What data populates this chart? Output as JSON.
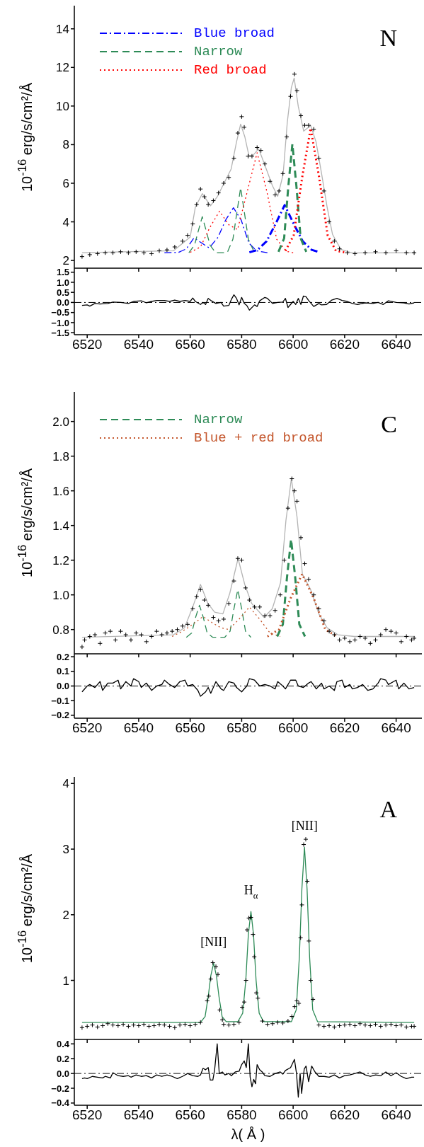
{
  "chart_data": [
    {
      "type": "line",
      "ylabel": "10$^{-16}$ erg/s/cm²/Å",
      "annotations": [
        "N"
      ],
      "xlim": [
        6515,
        6650
      ],
      "xticks": [
        6520,
        6540,
        6560,
        6580,
        6600,
        6620,
        6640
      ],
      "ylim": [
        1.6,
        15.2
      ],
      "yticks": [
        2,
        4,
        6,
        8,
        10,
        12,
        14
      ],
      "tick_labels": "y",
      "legend": "top left",
      "series": [
        {
          "type": "scatter",
          "marker": "cross",
          "color": "#000000",
          "x": [
            6518,
            6521,
            6524,
            6527,
            6530,
            6533,
            6536,
            6539,
            6542,
            6545,
            6548,
            6551,
            6554,
            6557,
            6559,
            6561,
            6562.5,
            6564,
            6565.5,
            6567,
            6569,
            6571,
            6573,
            6575,
            6577,
            6578.5,
            6580,
            6581,
            6582.5,
            6584,
            6586,
            6587.5,
            6589,
            6591,
            6593,
            6594.5,
            6596,
            6597.5,
            6599,
            6600.5,
            6601.5,
            6603,
            6604.5,
            6606,
            6608,
            6610,
            6612,
            6614,
            6616,
            6618,
            6621,
            6624,
            6628,
            6632,
            6636,
            6640,
            6644,
            6647
          ],
          "values": [
            2.2,
            2.3,
            2.35,
            2.4,
            2.4,
            2.45,
            2.4,
            2.45,
            2.4,
            2.35,
            2.5,
            2.55,
            2.7,
            3.0,
            3.3,
            3.9,
            4.9,
            5.7,
            5.3,
            4.9,
            5.1,
            5.5,
            6.0,
            6.3,
            7.3,
            8.6,
            9.45,
            8.9,
            7.4,
            7.4,
            7.85,
            7.7,
            7.0,
            6.1,
            5.4,
            5.6,
            6.5,
            8.4,
            10.5,
            11.65,
            10.8,
            9.5,
            9.0,
            9.0,
            8.8,
            7.3,
            5.6,
            4.0,
            3.0,
            2.6,
            2.4,
            2.35,
            2.4,
            2.45,
            2.4,
            2.5,
            2.4,
            2.4
          ]
        },
        {
          "color": "#b4b4b4",
          "x": [
            6518,
            6553.5,
            6560,
            6562,
            6564.7,
            6567.9,
            6570.6,
            6573.8,
            6575.9,
            6578,
            6579.6,
            6581.2,
            6582.8,
            6584.4,
            6586.6,
            6589.2,
            6591.9,
            6594,
            6596.1,
            6597.7,
            6599.3,
            6600.4,
            6602,
            6604.1,
            6606.8,
            6608.9,
            6611.1,
            6613.2,
            6615.3,
            6618.5,
            6622.8,
            6647.3
          ],
          "values": [
            2.4,
            2.5,
            3.21,
            4.76,
            5.46,
            4.83,
            5.32,
            6.17,
            6.73,
            8.14,
            9.06,
            8.42,
            7.44,
            7.44,
            7.79,
            6.87,
            5.89,
            5.32,
            6.45,
            9.13,
            10.96,
            11.45,
            9.97,
            8.7,
            8.99,
            8.14,
            6.45,
            4.76,
            3.35,
            2.58,
            2.39,
            2.4
          ]
        },
        {
          "color": "#0000ff",
          "line_style": "dashdot",
          "x": [
            6550,
            6555.5,
            6558.5,
            6561.5,
            6564.5,
            6567.4,
            6570.8,
            6573.8,
            6576.8,
            6579.8,
            6582.8,
            6585.8,
            6590
          ],
          "values": [
            2.4,
            2.42,
            2.6,
            3.17,
            2.9,
            2.65,
            3.2,
            4.1,
            4.73,
            4.1,
            2.9,
            2.5,
            2.4
          ]
        },
        {
          "color": "#2e8b57",
          "line_style": "dashed",
          "x": [
            6559.5,
            6561.7,
            6563.2,
            6564.7,
            6566.2,
            6567.7,
            6569.9,
            6574.4,
            6576.6,
            6578.1,
            6579.6,
            6581.1,
            6582.6,
            6584.8
          ],
          "values": [
            2.4,
            2.8,
            3.55,
            4.27,
            3.55,
            2.8,
            2.4,
            2.4,
            3.1,
            4.45,
            5.77,
            4.45,
            3.1,
            2.45
          ]
        },
        {
          "color": "#ff0000",
          "line_style": "dotted",
          "x": [
            6560,
            6564,
            6567.6,
            6571.4,
            6575,
            6578.4,
            6582.2,
            6586,
            6589.8,
            6593.6,
            6597.4,
            6600
          ],
          "values": [
            2.42,
            2.7,
            3.7,
            4.55,
            3.85,
            3.6,
            5.58,
            7.58,
            5.56,
            3.1,
            2.47,
            2.4
          ]
        },
        {
          "name": "Blue broad",
          "color": "#0000ff",
          "line_style": "dashdot",
          "x": [
            6583,
            6586.2,
            6589.7,
            6593.2,
            6596.7,
            6600.2,
            6603.7,
            6607.2,
            6610.4
          ],
          "values": [
            2.42,
            2.55,
            3.0,
            3.9,
            4.87,
            3.9,
            3.0,
            2.55,
            2.42
          ]
        },
        {
          "name": "Narrow",
          "color": "#2e8b57",
          "line_style": "dashed",
          "x": [
            6594.3,
            6596.5,
            6598.1,
            6599.7,
            6601.3,
            6602.9,
            6605.1
          ],
          "values": [
            2.45,
            3.15,
            5.8,
            8.03,
            5.8,
            3.15,
            2.45
          ]
        },
        {
          "name": "Red broad",
          "color": "#ff0000",
          "line_style": "dotted",
          "x": [
            6597,
            6600.2,
            6603.5,
            6606.8,
            6610.1,
            6613.4,
            6616.6,
            6620
          ],
          "values": [
            2.5,
            3.3,
            6.3,
            8.85,
            6.3,
            3.3,
            2.5,
            2.42
          ]
        }
      ]
    },
    {
      "type": "line",
      "xlim": [
        6515,
        6650
      ],
      "xticks": [
        6520,
        6540,
        6560,
        6580,
        6600,
        6620,
        6640
      ],
      "ylim": [
        -1.6,
        1.7
      ],
      "yticks": [
        {
          "value": -1.5,
          "label": "−1.5"
        },
        {
          "value": -1,
          "label": "−1.0"
        },
        {
          "value": -0.5,
          "label": "−0.5"
        },
        {
          "value": 0,
          "label": "0.0"
        },
        {
          "value": 0.5,
          "label": "0.5"
        },
        {
          "value": 1,
          "label": "1.0"
        },
        {
          "value": 1.5,
          "label": "1.5"
        }
      ],
      "ref_lines": [
        {
          "axis": "y",
          "value": 0,
          "color": "#000000",
          "line_style": "dashdot"
        }
      ],
      "series": [
        {
          "color": "#000000",
          "x": [
            6518,
            6520,
            6521,
            6523,
            6525,
            6528,
            6530,
            6533,
            6536,
            6538,
            6541,
            6543,
            6545,
            6547,
            6550,
            6552,
            6554,
            6556,
            6558,
            6560,
            6561,
            6562,
            6564,
            6565,
            6566,
            6567,
            6568,
            6570,
            6572,
            6573,
            6575,
            6576,
            6577,
            6578,
            6579,
            6580,
            6581,
            6582,
            6583,
            6585,
            6586,
            6587,
            6589,
            6590,
            6592,
            6594,
            6596,
            6597,
            6598,
            6599,
            6600,
            6601,
            6602,
            6603,
            6604,
            6605,
            6606,
            6608,
            6610,
            6611,
            6613,
            6615,
            6617,
            6619,
            6621,
            6623,
            6625,
            6628,
            6631,
            6633,
            6635,
            6637,
            6640,
            6643,
            6645,
            6647
          ],
          "values": [
            -0.15,
            -0.12,
            -0.18,
            -0.05,
            -0.08,
            -0.05,
            0.02,
            0.0,
            -0.05,
            0.05,
            0.08,
            -0.02,
            0.05,
            0.1,
            0.1,
            0.05,
            0.12,
            0.05,
            0.1,
            0.05,
            0.22,
            0.05,
            -0.1,
            0.0,
            -0.1,
            0.2,
            0.1,
            -0.05,
            0.0,
            -0.18,
            -0.15,
            0.15,
            0.38,
            0.2,
            -0.12,
            0.25,
            -0.05,
            -0.15,
            -0.38,
            -0.12,
            -0.2,
            0.08,
            0.25,
            0.2,
            -0.05,
            0.0,
            0.02,
            0.2,
            -0.25,
            -0.1,
            0.05,
            -0.1,
            0.2,
            -0.1,
            0.32,
            0.28,
            0.1,
            -0.2,
            -0.05,
            -0.12,
            -0.1,
            0.12,
            0.2,
            0.1,
            0.05,
            -0.05,
            -0.1,
            -0.02,
            -0.05,
            0.0,
            -0.1,
            0.08,
            0.0,
            -0.02,
            -0.08,
            -0.02
          ]
        }
      ]
    },
    {
      "type": "line",
      "ylabel": "10$^{-16}$ erg/s/cm²/Å",
      "annotations": [
        "C"
      ],
      "xlim": [
        6515,
        6650
      ],
      "xticks": [
        6520,
        6540,
        6560,
        6580,
        6600,
        6620,
        6640
      ],
      "ylim": [
        0.66,
        2.17
      ],
      "yticks": [
        {
          "value": 0.8,
          "label": "0.8"
        },
        {
          "value": 1,
          "label": "1.0"
        },
        {
          "value": 1.2,
          "label": "1.2"
        },
        {
          "value": 1.4,
          "label": "1.4"
        },
        {
          "value": 1.6,
          "label": "1.6"
        },
        {
          "value": 1.8,
          "label": "1.8"
        },
        {
          "value": 2,
          "label": "2.0"
        }
      ],
      "tick_labels": "y",
      "legend": "top left",
      "series": [
        {
          "type": "scatter",
          "marker": "cross",
          "color": "#000000",
          "x": [
            6518,
            6519,
            6521,
            6523,
            6525,
            6527,
            6529,
            6531,
            6533,
            6535,
            6537,
            6539,
            6541,
            6543,
            6545,
            6547,
            6549,
            6551,
            6553,
            6555,
            6557,
            6559,
            6561,
            6562.5,
            6564,
            6565.5,
            6567,
            6569,
            6571,
            6573,
            6575,
            6577,
            6578.5,
            6580,
            6581.5,
            6583,
            6585,
            6587,
            6589,
            6591,
            6593,
            6595,
            6596.5,
            6598,
            6599.5,
            6600.5,
            6601.5,
            6603,
            6604.5,
            6606,
            6608,
            6610,
            6612,
            6614,
            6616,
            6618,
            6620,
            6622,
            6624,
            6626,
            6628,
            6630,
            6632,
            6634,
            6636,
            6638,
            6640,
            6642,
            6644,
            6646,
            6647
          ],
          "values": [
            0.7,
            0.74,
            0.76,
            0.77,
            0.72,
            0.78,
            0.79,
            0.74,
            0.79,
            0.77,
            0.74,
            0.78,
            0.77,
            0.73,
            0.76,
            0.79,
            0.77,
            0.78,
            0.79,
            0.8,
            0.82,
            0.83,
            0.92,
            0.99,
            1.03,
            0.97,
            0.94,
            0.87,
            0.85,
            0.86,
            0.95,
            1.08,
            1.21,
            1.2,
            1.04,
            0.97,
            0.93,
            0.93,
            0.88,
            0.88,
            0.91,
            1.0,
            1.2,
            1.5,
            1.67,
            1.6,
            1.54,
            1.33,
            1.18,
            1.09,
            1.0,
            0.92,
            0.85,
            0.79,
            0.77,
            0.74,
            0.75,
            0.73,
            0.74,
            0.76,
            0.75,
            0.72,
            0.74,
            0.77,
            0.8,
            0.79,
            0.78,
            0.73,
            0.76,
            0.74,
            0.75
          ]
        },
        {
          "color": "#b4b4b4",
          "x": [
            6518,
            6553.5,
            6557.8,
            6561,
            6564,
            6566.9,
            6569.5,
            6572.7,
            6575.4,
            6578.6,
            6581.2,
            6583.9,
            6588.7,
            6591.9,
            6595.1,
            6597.2,
            6599.3,
            6601.5,
            6603.6,
            6606.8,
            6610,
            6613.2,
            6617.4,
            6623.8,
            6647.3
          ],
          "values": [
            0.755,
            0.77,
            0.81,
            0.93,
            1.06,
            0.95,
            0.9,
            0.89,
            1.01,
            1.21,
            1.06,
            0.95,
            0.87,
            0.92,
            1.07,
            1.43,
            1.67,
            1.45,
            1.12,
            1.03,
            0.89,
            0.81,
            0.77,
            0.76,
            0.76
          ]
        },
        {
          "color": "#2e8b57",
          "line_style": "dashed",
          "x": [
            6558.5,
            6560.6,
            6562.1,
            6563.6,
            6565.1,
            6566.6,
            6568.8,
            6573.4,
            6575.5,
            6577,
            6578.5,
            6580,
            6581.5,
            6583.6
          ],
          "values": [
            0.755,
            0.78,
            0.87,
            0.94,
            0.87,
            0.78,
            0.755,
            0.755,
            0.79,
            0.92,
            1.03,
            0.92,
            0.79,
            0.755
          ]
        },
        {
          "color": "#c4562c",
          "line_style": "dotted",
          "x": [
            6553,
            6557,
            6561,
            6565,
            6569,
            6572,
            6575,
            6579,
            6583,
            6587,
            6591,
            6595
          ],
          "values": [
            0.76,
            0.79,
            0.83,
            0.875,
            0.835,
            0.81,
            0.8,
            0.86,
            0.93,
            0.86,
            0.78,
            0.76
          ]
        },
        {
          "name": "Narrow",
          "color": "#2e8b57",
          "line_style": "dashed",
          "x": [
            6593.8,
            6596,
            6597.6,
            6599.2,
            6600.8,
            6602.4,
            6604.6
          ],
          "values": [
            0.76,
            0.83,
            1.1,
            1.32,
            1.1,
            0.83,
            0.76
          ]
        },
        {
          "name": "Blue + red broad",
          "color": "#c4562c",
          "line_style": "dotted",
          "x": [
            6590,
            6594.5,
            6599,
            6603.5,
            6608,
            6612.5,
            6617
          ],
          "values": [
            0.76,
            0.8,
            0.98,
            1.12,
            0.98,
            0.8,
            0.76
          ]
        }
      ]
    },
    {
      "type": "line",
      "xlim": [
        6515,
        6650
      ],
      "xticks": [
        6520,
        6540,
        6560,
        6580,
        6600,
        6620,
        6640
      ],
      "ylim": [
        -0.22,
        0.22
      ],
      "yticks": [
        {
          "value": -0.2,
          "label": "−0.2"
        },
        {
          "value": -0.1,
          "label": "−0.1"
        },
        {
          "value": 0,
          "label": "0.0"
        },
        {
          "value": 0.1,
          "label": "0.1"
        },
        {
          "value": 0.2,
          "label": "0.2"
        }
      ],
      "ref_lines": [
        {
          "axis": "y",
          "value": 0,
          "color": "#000000",
          "line_style": "dashdot"
        }
      ],
      "series": [
        {
          "color": "#000000",
          "x": [
            6518,
            6520,
            6521,
            6523,
            6525,
            6526,
            6528,
            6530,
            6532,
            6533,
            6535,
            6537,
            6538,
            6540,
            6541,
            6543,
            6545,
            6547,
            6549,
            6550,
            6552,
            6554,
            6556,
            6558,
            6559,
            6561,
            6563,
            6564,
            6566,
            6567,
            6568,
            6570,
            6572,
            6573,
            6575,
            6577,
            6578,
            6580,
            6582,
            6583,
            6585,
            6587,
            6589,
            6591,
            6593,
            6594,
            6596,
            6597,
            6599,
            6601,
            6602,
            6604,
            6606,
            6607,
            6609,
            6611,
            6612,
            6614,
            6616,
            6617,
            6619,
            6620,
            6622,
            6623,
            6625,
            6627,
            6629,
            6631,
            6633,
            6634,
            6636,
            6637,
            6639,
            6640,
            6641,
            6643,
            6645,
            6647
          ],
          "values": [
            -0.04,
            0.0,
            0.01,
            -0.01,
            0.03,
            -0.03,
            0.02,
            0.02,
            0.04,
            -0.02,
            0.03,
            0.0,
            0.05,
            0.03,
            -0.01,
            0.02,
            -0.03,
            0.0,
            0.01,
            0.04,
            0.01,
            -0.01,
            0.03,
            0.04,
            0.0,
            0.01,
            -0.03,
            -0.07,
            -0.04,
            -0.01,
            -0.05,
            0.03,
            -0.02,
            -0.03,
            0.03,
            0.02,
            -0.01,
            -0.04,
            0.0,
            0.05,
            0.04,
            0.0,
            0.01,
            0.0,
            -0.02,
            0.03,
            0.0,
            -0.02,
            0.04,
            0.04,
            0.0,
            -0.01,
            0.02,
            0.03,
            -0.02,
            0.02,
            -0.02,
            0.0,
            -0.03,
            0.03,
            0.04,
            -0.01,
            0.01,
            -0.02,
            -0.01,
            0.01,
            -0.03,
            -0.02,
            0.02,
            0.05,
            0.04,
            0.01,
            0.03,
            0.04,
            -0.02,
            0.02,
            -0.02,
            -0.01
          ]
        }
      ]
    },
    {
      "type": "line",
      "ylabel": "10$^{-16}$ erg/s/cm²/Å",
      "annotations": [
        "A",
        {
          "text": "[NII]",
          "x": 6569.1,
          "y": 1.26
        },
        {
          "text": "H$_{α}$",
          "x": 6583.6,
          "y": 2.05
        },
        {
          "text": "[NII]",
          "x": 6604.4,
          "y": 3.03
        }
      ],
      "xlim": [
        6515,
        6650
      ],
      "xticks": [
        6520,
        6540,
        6560,
        6580,
        6600,
        6620,
        6640
      ],
      "ylim": [
        0.1,
        4.1
      ],
      "yticks": [
        1,
        2,
        3,
        4
      ],
      "tick_labels": "y",
      "series": [
        {
          "type": "scatter",
          "marker": "cross",
          "color": "#000000",
          "x": [
            6518,
            6520,
            6522,
            6524,
            6526,
            6528,
            6530,
            6532,
            6534,
            6536,
            6538,
            6540,
            6542,
            6544,
            6546,
            6548,
            6550,
            6552,
            6554,
            6556,
            6558,
            6560,
            6562,
            6564,
            6566.6,
            6567.2,
            6568,
            6568.8,
            6570,
            6570.8,
            6571.5,
            6572.5,
            6573,
            6575,
            6577,
            6579,
            6580.2,
            6581,
            6581.7,
            6582.1,
            6582.8,
            6583.6,
            6584.4,
            6584.9,
            6585.7,
            6586.3,
            6588,
            6590,
            6592,
            6594,
            6596,
            6598,
            6599.5,
            6600.6,
            6601.4,
            6602.2,
            6602.9,
            6603.4,
            6604.1,
            6604.9,
            6605.5,
            6606.1,
            6606.8,
            6607.7,
            6610,
            6612,
            6614,
            6616,
            6618,
            6620,
            6622,
            6624,
            6626,
            6628,
            6630,
            6632,
            6634,
            6636,
            6638,
            6640,
            6642,
            6644,
            6646,
            6647
          ],
          "values": [
            0.28,
            0.3,
            0.32,
            0.29,
            0.31,
            0.34,
            0.32,
            0.31,
            0.33,
            0.3,
            0.32,
            0.31,
            0.33,
            0.3,
            0.31,
            0.33,
            0.32,
            0.3,
            0.28,
            0.32,
            0.33,
            0.31,
            0.33,
            0.36,
            0.69,
            0.76,
            1.02,
            1.27,
            1.21,
            1.09,
            0.55,
            0.4,
            0.33,
            0.32,
            0.33,
            0.36,
            0.59,
            0.67,
            1.0,
            1.77,
            1.95,
            1.96,
            1.7,
            1.36,
            0.81,
            0.73,
            0.38,
            0.33,
            0.34,
            0.36,
            0.35,
            0.38,
            0.45,
            0.6,
            0.69,
            0.65,
            1.65,
            2.15,
            3.07,
            3.15,
            2.51,
            1.6,
            1.0,
            0.71,
            0.32,
            0.3,
            0.31,
            0.29,
            0.31,
            0.32,
            0.33,
            0.31,
            0.34,
            0.32,
            0.31,
            0.33,
            0.3,
            0.32,
            0.33,
            0.31,
            0.32,
            0.29,
            0.3,
            0.3
          ]
        },
        {
          "color": "#2e8b57",
          "x": [
            6518,
            6564,
            6565.8,
            6567,
            6568,
            6569.1,
            6570.2,
            6571.2,
            6572.4,
            6574,
            6578.5,
            6580.4,
            6581.6,
            6582.6,
            6583.6,
            6584.6,
            6585.6,
            6586.8,
            6588.5,
            6599.3,
            6601.2,
            6602.4,
            6603.4,
            6604.4,
            6605.4,
            6606.4,
            6607.6,
            6609.5,
            6647
          ],
          "values": [
            0.36,
            0.36,
            0.45,
            0.75,
            1.07,
            1.26,
            1.07,
            0.75,
            0.45,
            0.37,
            0.37,
            0.5,
            1.0,
            1.7,
            2.05,
            1.7,
            1.0,
            0.5,
            0.37,
            0.37,
            0.55,
            1.35,
            2.4,
            3.03,
            2.4,
            1.35,
            0.55,
            0.37,
            0.36
          ]
        }
      ]
    },
    {
      "type": "line",
      "xlabel": "λ( Å )",
      "xlim": [
        6515,
        6650
      ],
      "xticks": [
        6520,
        6540,
        6560,
        6580,
        6600,
        6620,
        6640
      ],
      "ylim": [
        -0.43,
        0.46
      ],
      "yticks": [
        {
          "value": -0.4,
          "label": "−0.4"
        },
        {
          "value": -0.2,
          "label": "−0.2"
        },
        {
          "value": 0,
          "label": "0.0"
        },
        {
          "value": 0.2,
          "label": "0.2"
        },
        {
          "value": 0.4,
          "label": "0.4"
        }
      ],
      "ref_lines": [
        {
          "axis": "y",
          "value": 0,
          "color": "#000000",
          "line_style": "dashdot"
        }
      ],
      "series": [
        {
          "color": "#000000",
          "x": [
            6518,
            6519,
            6520,
            6522,
            6524,
            6526,
            6527,
            6529,
            6530,
            6532,
            6534,
            6536,
            6537,
            6539,
            6541,
            6543,
            6545,
            6547,
            6549,
            6551,
            6553,
            6555,
            6557,
            6559,
            6561,
            6563,
            6564,
            6565,
            6566,
            6567,
            6567.8,
            6568.8,
            6569.5,
            6570.5,
            6571.3,
            6572.5,
            6573.5,
            6575,
            6576,
            6577.5,
            6579,
            6580,
            6581,
            6581.8,
            6582.6,
            6583.3,
            6584,
            6584.7,
            6585.4,
            6586,
            6587,
            6588,
            6589,
            6591,
            6593,
            6595,
            6596,
            6597,
            6599,
            6600.5,
            6601.3,
            6602,
            6602.7,
            6603.3,
            6604.3,
            6605,
            6606,
            6607.2,
            6608.5,
            6610,
            6612,
            6614,
            6616,
            6618,
            6620,
            6622,
            6624,
            6626,
            6628,
            6630,
            6632,
            6634,
            6636,
            6638,
            6640,
            6642,
            6644,
            6646,
            6647
          ],
          "values": [
            -0.07,
            -0.06,
            -0.07,
            -0.04,
            -0.05,
            -0.06,
            -0.04,
            -0.06,
            0.01,
            -0.03,
            -0.04,
            -0.03,
            -0.05,
            -0.02,
            -0.04,
            -0.03,
            -0.06,
            -0.02,
            -0.04,
            -0.02,
            -0.04,
            -0.07,
            -0.04,
            0.0,
            -0.03,
            -0.04,
            -0.02,
            0.07,
            0.05,
            0.08,
            -0.09,
            -0.09,
            0.05,
            0.4,
            0.0,
            0.02,
            -0.02,
            0.0,
            -0.03,
            0.02,
            0.03,
            0.12,
            0.17,
            0.08,
            0.4,
            -0.05,
            -0.18,
            -0.08,
            -0.14,
            0.12,
            0.05,
            0.02,
            -0.03,
            -0.04,
            0.0,
            0.02,
            -0.01,
            0.04,
            0.08,
            0.19,
            0.0,
            -0.32,
            0.0,
            -0.27,
            0.06,
            0.1,
            -0.11,
            0.1,
            0.02,
            -0.04,
            -0.04,
            -0.05,
            -0.02,
            -0.06,
            -0.03,
            -0.02,
            0.0,
            0.02,
            -0.02,
            -0.04,
            -0.02,
            -0.03,
            0.02,
            -0.03,
            0.01,
            -0.04,
            -0.07,
            -0.05,
            -0.05
          ]
        }
      ]
    }
  ]
}
